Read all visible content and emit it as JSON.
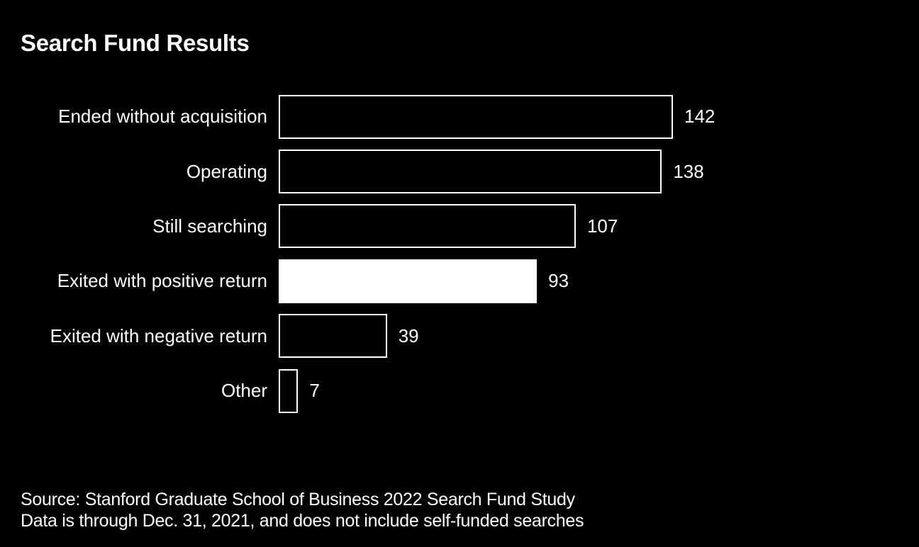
{
  "title": "Search Fund Results",
  "source": {
    "line1": "Source: Stanford Graduate School of Business 2022 Search Fund Study",
    "line2": "Data is through Dec. 31, 2021, and does not include self-funded searches"
  },
  "chart_data": {
    "type": "bar",
    "orientation": "horizontal",
    "title": "Search Fund Results",
    "categories": [
      "Ended without acquisition",
      "Operating",
      "Still searching",
      "Exited with positive return",
      "Exited with negative return",
      "Other"
    ],
    "values": [
      142,
      138,
      107,
      93,
      39,
      7
    ],
    "bar_style": [
      "outlined",
      "outlined",
      "outlined",
      "filled",
      "outlined",
      "outlined"
    ],
    "data_labels_shown": true,
    "xlim": [
      0,
      142
    ],
    "grid": false,
    "legend": false,
    "colors": {
      "background": "#000000",
      "bar_outline": "#ffffff",
      "bar_fill": "#ffffff",
      "text": "#ffffff"
    },
    "source_lines": [
      "Source: Stanford Graduate School of Business 2022 Search Fund Study",
      "Data is through Dec. 31, 2021, and does not include self-funded searches"
    ]
  }
}
